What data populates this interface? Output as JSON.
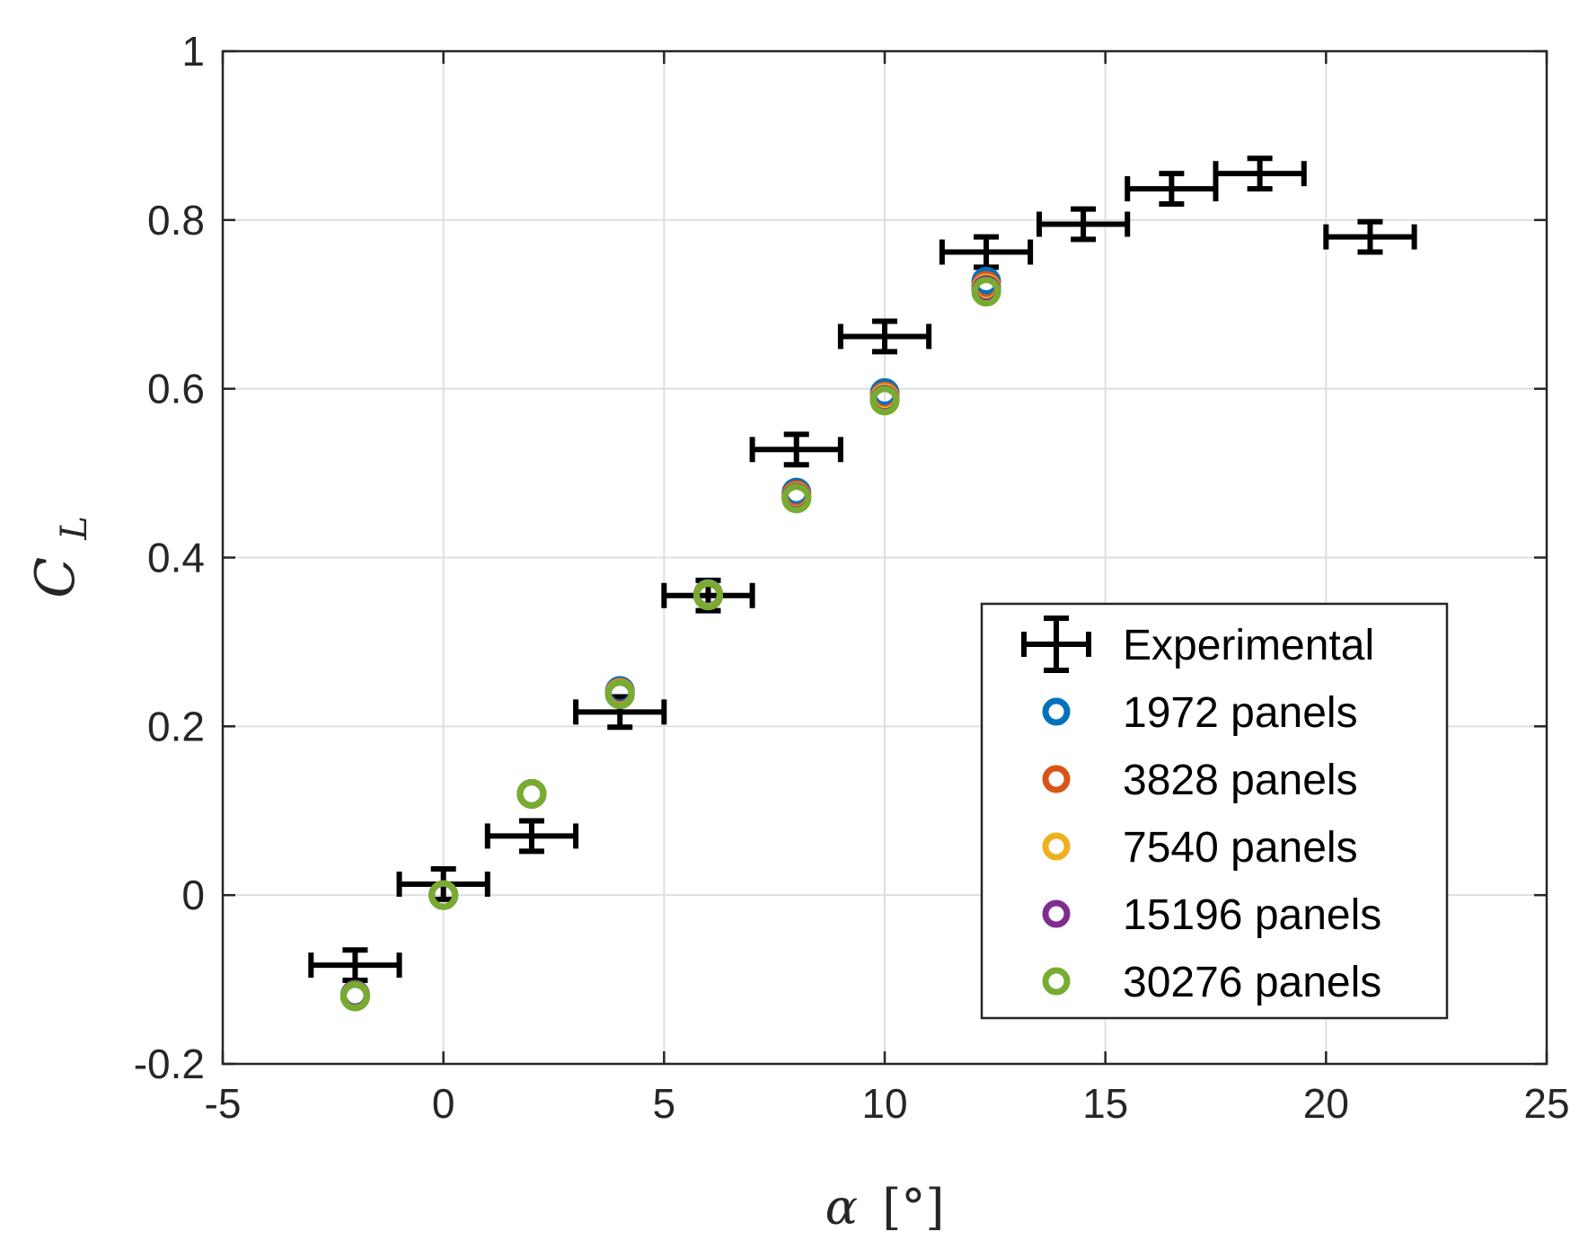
{
  "chart_data": {
    "type": "scatter",
    "title": "",
    "xlabel_symbol": "α",
    "xlabel_unit": "[°]",
    "ylabel_base": "C",
    "ylabel_sub": "L",
    "xlim": [
      -5,
      25
    ],
    "ylim": [
      -0.2,
      1
    ],
    "xticks": [
      -5,
      0,
      5,
      10,
      15,
      20,
      25
    ],
    "yticks": [
      -0.2,
      0,
      0.2,
      0.4,
      0.6,
      0.8,
      1
    ],
    "xtick_labels": [
      "-5",
      "0",
      "5",
      "10",
      "15",
      "20",
      "25"
    ],
    "ytick_labels": [
      "-0.2",
      "0",
      "0.2",
      "0.4",
      "0.6",
      "0.8",
      "1"
    ],
    "grid": true,
    "legend_position": "lower-right",
    "experimental": {
      "name": "Experimental",
      "color": "#000000",
      "x_err": 1.0,
      "y_err": 0.018,
      "points": [
        {
          "x": -2,
          "y": -0.083
        },
        {
          "x": 0,
          "y": 0.013
        },
        {
          "x": 2,
          "y": 0.07
        },
        {
          "x": 4,
          "y": 0.217
        },
        {
          "x": 6,
          "y": 0.355
        },
        {
          "x": 8,
          "y": 0.528
        },
        {
          "x": 10,
          "y": 0.662
        },
        {
          "x": 12.3,
          "y": 0.762
        },
        {
          "x": 14.5,
          "y": 0.795
        },
        {
          "x": 16.5,
          "y": 0.837
        },
        {
          "x": 18.5,
          "y": 0.855
        },
        {
          "x": 21,
          "y": 0.78
        }
      ]
    },
    "series": [
      {
        "name": "1972 panels",
        "color": "#0072BD",
        "x": [
          -2,
          0,
          2,
          4,
          6,
          8,
          10,
          12.3
        ],
        "y": [
          -0.118,
          0.0,
          0.12,
          0.242,
          0.357,
          0.477,
          0.595,
          0.727
        ]
      },
      {
        "name": "3828 panels",
        "color": "#D95319",
        "x": [
          -2,
          0,
          2,
          4,
          6,
          8,
          10,
          12.3
        ],
        "y": [
          -0.119,
          0.0,
          0.12,
          0.24,
          0.356,
          0.474,
          0.591,
          0.722
        ]
      },
      {
        "name": "7540 panels",
        "color": "#EDB120",
        "x": [
          -2,
          0,
          2,
          4,
          6,
          8,
          10,
          12.3
        ],
        "y": [
          -0.12,
          0.0,
          0.12,
          0.239,
          0.356,
          0.472,
          0.589,
          0.719
        ]
      },
      {
        "name": "15196 panels",
        "color": "#7E2F8E",
        "x": [
          -2,
          0,
          2,
          4,
          6,
          8,
          10,
          12.3
        ],
        "y": [
          -0.12,
          0.0,
          0.12,
          0.238,
          0.355,
          0.471,
          0.587,
          0.717
        ]
      },
      {
        "name": "30276 panels",
        "color": "#77AC30",
        "x": [
          -2,
          0,
          2,
          4,
          6,
          8,
          10,
          12.3
        ],
        "y": [
          -0.12,
          0.0,
          0.12,
          0.238,
          0.355,
          0.47,
          0.586,
          0.715
        ]
      }
    ]
  }
}
